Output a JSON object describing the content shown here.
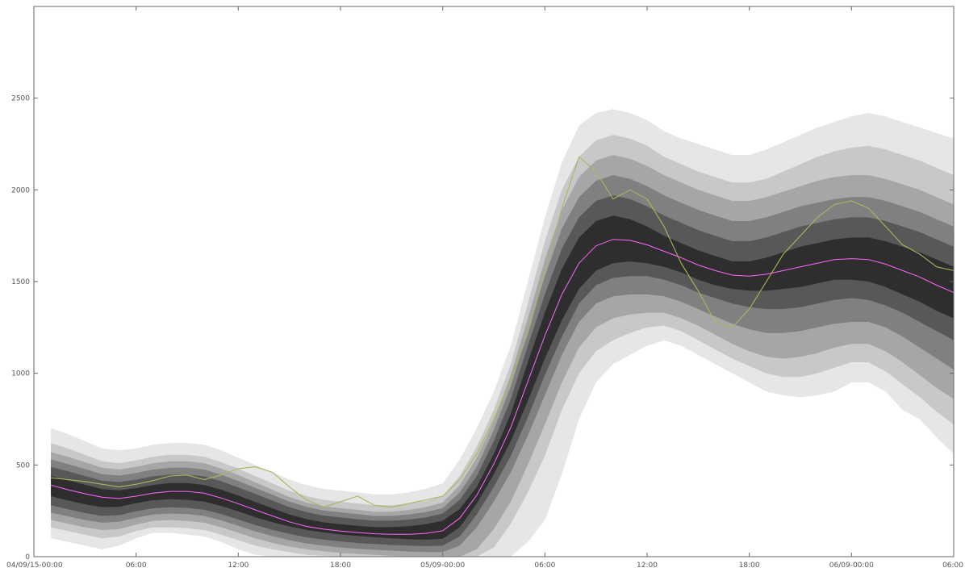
{
  "chart_data": {
    "type": "area",
    "title": "",
    "xlabel": "",
    "ylabel": "",
    "x_range_hours": [
      0,
      54
    ],
    "ylim": [
      0,
      3000
    ],
    "grid": false,
    "x_ticks": [
      {
        "hour": 0,
        "label": "04/09/15-00:00"
      },
      {
        "hour": 6,
        "label": "06:00"
      },
      {
        "hour": 12,
        "label": "12:00"
      },
      {
        "hour": 18,
        "label": "18:00"
      },
      {
        "hour": 24,
        "label": "05/09-00:00"
      },
      {
        "hour": 30,
        "label": "06:00"
      },
      {
        "hour": 36,
        "label": "12:00"
      },
      {
        "hour": 42,
        "label": "18:00"
      },
      {
        "hour": 48,
        "label": "06/09-00:00"
      },
      {
        "hour": 54,
        "label": "06:00"
      }
    ],
    "y_ticks": [
      0,
      500,
      1000,
      1500,
      2000,
      2500
    ],
    "hours": [
      1,
      2,
      3,
      4,
      5,
      6,
      7,
      8,
      9,
      10,
      11,
      12,
      13,
      14,
      15,
      16,
      17,
      18,
      19,
      20,
      21,
      22,
      23,
      24,
      25,
      26,
      27,
      28,
      29,
      30,
      31,
      32,
      33,
      34,
      35,
      36,
      37,
      38,
      39,
      40,
      41,
      42,
      43,
      44,
      45,
      46,
      47,
      48,
      49,
      50,
      51,
      52,
      53,
      54
    ],
    "fan_bands_outer_to_inner": [
      {
        "lower": [
          100,
          80,
          60,
          40,
          60,
          100,
          130,
          130,
          120,
          110,
          80,
          40,
          10,
          0,
          0,
          0,
          0,
          0,
          0,
          0,
          0,
          0,
          0,
          0,
          0,
          0,
          0,
          0,
          80,
          200,
          450,
          750,
          950,
          1050,
          1100,
          1150,
          1180,
          1150,
          1100,
          1050,
          1000,
          950,
          900,
          880,
          870,
          880,
          900,
          950,
          950,
          900,
          800,
          750,
          650,
          560
        ],
        "upper": [
          700,
          670,
          630,
          590,
          580,
          590,
          610,
          620,
          620,
          610,
          580,
          540,
          500,
          460,
          420,
          390,
          370,
          360,
          350,
          340,
          340,
          350,
          370,
          400,
          530,
          700,
          900,
          1150,
          1500,
          1850,
          2150,
          2350,
          2420,
          2440,
          2420,
          2380,
          2320,
          2280,
          2250,
          2220,
          2190,
          2190,
          2220,
          2260,
          2300,
          2340,
          2370,
          2400,
          2420,
          2400,
          2370,
          2340,
          2310,
          2280
        ]
      },
      {
        "lower": [
          160,
          140,
          120,
          100,
          110,
          140,
          160,
          160,
          155,
          145,
          120,
          90,
          60,
          40,
          25,
          10,
          5,
          0,
          0,
          0,
          0,
          0,
          0,
          0,
          0,
          0,
          50,
          180,
          350,
          550,
          800,
          1000,
          1120,
          1180,
          1220,
          1250,
          1260,
          1230,
          1180,
          1130,
          1080,
          1040,
          1000,
          980,
          980,
          1000,
          1030,
          1060,
          1060,
          1010,
          940,
          870,
          790,
          720
        ],
        "upper": [
          620,
          590,
          555,
          520,
          510,
          525,
          545,
          555,
          555,
          545,
          515,
          480,
          440,
          400,
          360,
          330,
          310,
          300,
          290,
          280,
          280,
          290,
          305,
          330,
          440,
          600,
          800,
          1050,
          1380,
          1720,
          2000,
          2180,
          2270,
          2300,
          2280,
          2240,
          2180,
          2140,
          2100,
          2070,
          2040,
          2040,
          2060,
          2100,
          2140,
          2180,
          2210,
          2230,
          2240,
          2220,
          2190,
          2160,
          2120,
          2080
        ]
      },
      {
        "lower": [
          200,
          180,
          160,
          145,
          150,
          175,
          195,
          200,
          195,
          185,
          160,
          130,
          100,
          75,
          55,
          40,
          30,
          20,
          15,
          10,
          5,
          0,
          0,
          0,
          0,
          40,
          150,
          300,
          500,
          720,
          950,
          1140,
          1250,
          1300,
          1320,
          1330,
          1330,
          1300,
          1260,
          1210,
          1160,
          1120,
          1090,
          1080,
          1090,
          1110,
          1140,
          1160,
          1160,
          1120,
          1060,
          990,
          920,
          860
        ],
        "upper": [
          570,
          545,
          515,
          485,
          475,
          490,
          510,
          520,
          520,
          510,
          480,
          445,
          405,
          365,
          325,
          295,
          275,
          265,
          255,
          245,
          245,
          255,
          270,
          295,
          390,
          540,
          740,
          990,
          1300,
          1620,
          1890,
          2070,
          2160,
          2190,
          2170,
          2130,
          2080,
          2040,
          2000,
          1970,
          1940,
          1940,
          1960,
          1990,
          2020,
          2050,
          2070,
          2080,
          2080,
          2060,
          2030,
          2000,
          1960,
          1920
        ]
      },
      {
        "lower": [
          240,
          220,
          200,
          185,
          190,
          212,
          230,
          235,
          232,
          222,
          198,
          168,
          138,
          112,
          90,
          72,
          60,
          50,
          43,
          38,
          33,
          28,
          25,
          25,
          60,
          160,
          300,
          460,
          660,
          880,
          1100,
          1280,
          1380,
          1420,
          1430,
          1430,
          1420,
          1390,
          1350,
          1310,
          1270,
          1240,
          1220,
          1220,
          1230,
          1250,
          1270,
          1280,
          1280,
          1250,
          1200,
          1140,
          1080,
          1020
        ],
        "upper": [
          530,
          505,
          478,
          450,
          442,
          456,
          475,
          485,
          485,
          475,
          447,
          413,
          375,
          338,
          300,
          272,
          252,
          242,
          232,
          222,
          222,
          230,
          243,
          265,
          350,
          490,
          690,
          930,
          1230,
          1530,
          1790,
          1960,
          2050,
          2080,
          2060,
          2020,
          1970,
          1930,
          1890,
          1860,
          1830,
          1830,
          1850,
          1880,
          1910,
          1930,
          1950,
          1960,
          1960,
          1940,
          1910,
          1880,
          1840,
          1800
        ]
      },
      {
        "lower": [
          280,
          258,
          238,
          222,
          226,
          248,
          264,
          269,
          266,
          256,
          232,
          203,
          172,
          146,
          124,
          106,
          93,
          83,
          75,
          69,
          64,
          60,
          58,
          60,
          110,
          230,
          380,
          550,
          760,
          990,
          1200,
          1380,
          1480,
          1520,
          1530,
          1530,
          1510,
          1480,
          1440,
          1410,
          1380,
          1360,
          1350,
          1350,
          1360,
          1380,
          1400,
          1410,
          1400,
          1370,
          1330,
          1280,
          1230,
          1180
        ],
        "upper": [
          490,
          466,
          440,
          414,
          407,
          420,
          438,
          448,
          448,
          438,
          411,
          378,
          342,
          306,
          270,
          243,
          224,
          214,
          204,
          196,
          196,
          202,
          214,
          235,
          310,
          440,
          630,
          860,
          1150,
          1430,
          1680,
          1850,
          1940,
          1970,
          1950,
          1910,
          1860,
          1820,
          1780,
          1750,
          1720,
          1720,
          1740,
          1770,
          1800,
          1820,
          1840,
          1850,
          1850,
          1830,
          1800,
          1770,
          1730,
          1690
        ]
      },
      {
        "lower": [
          330,
          306,
          286,
          270,
          272,
          292,
          308,
          313,
          310,
          300,
          276,
          247,
          215,
          188,
          165,
          146,
          132,
          121,
          113,
          106,
          100,
          95,
          93,
          98,
          160,
          290,
          450,
          630,
          850,
          1080,
          1290,
          1460,
          1560,
          1600,
          1610,
          1600,
          1580,
          1550,
          1510,
          1480,
          1460,
          1450,
          1450,
          1460,
          1470,
          1490,
          1510,
          1510,
          1500,
          1470,
          1430,
          1390,
          1340,
          1300
        ],
        "upper": [
          440,
          416,
          392,
          368,
          362,
          374,
          391,
          401,
          401,
          391,
          365,
          333,
          298,
          264,
          230,
          205,
          187,
          177,
          168,
          161,
          161,
          166,
          177,
          196,
          260,
          380,
          560,
          780,
          1060,
          1330,
          1570,
          1740,
          1830,
          1860,
          1840,
          1800,
          1750,
          1710,
          1670,
          1640,
          1610,
          1610,
          1630,
          1660,
          1690,
          1710,
          1730,
          1740,
          1740,
          1720,
          1690,
          1660,
          1620,
          1580
        ]
      }
    ],
    "series": [
      {
        "values": [
          390,
          365,
          343,
          324,
          317,
          330,
          346,
          356,
          356,
          346,
          320,
          289,
          255,
          222,
          190,
          165,
          150,
          140,
          132,
          125,
          122,
          122,
          127,
          141,
          210,
          335,
          505,
          705,
          955,
          1205,
          1430,
          1600,
          1695,
          1730,
          1725,
          1700,
          1665,
          1630,
          1590,
          1560,
          1535,
          1530,
          1540,
          1560,
          1580,
          1600,
          1620,
          1625,
          1620,
          1595,
          1560,
          1525,
          1480,
          1440
        ],
        "color": "#ff66ff"
      },
      {
        "values": [
          430,
          420,
          410,
          395,
          380,
          395,
          415,
          440,
          445,
          420,
          445,
          480,
          490,
          460,
          380,
          310,
          270,
          300,
          330,
          280,
          270,
          290,
          310,
          330,
          420,
          560,
          750,
          960,
          1220,
          1550,
          1900,
          2180,
          2100,
          1950,
          2000,
          1950,
          1800,
          1600,
          1450,
          1280,
          1250,
          1350,
          1500,
          1650,
          1750,
          1850,
          1920,
          1940,
          1900,
          1800,
          1700,
          1650,
          1580,
          1560
        ],
        "color": "#a8b85c"
      }
    ]
  }
}
